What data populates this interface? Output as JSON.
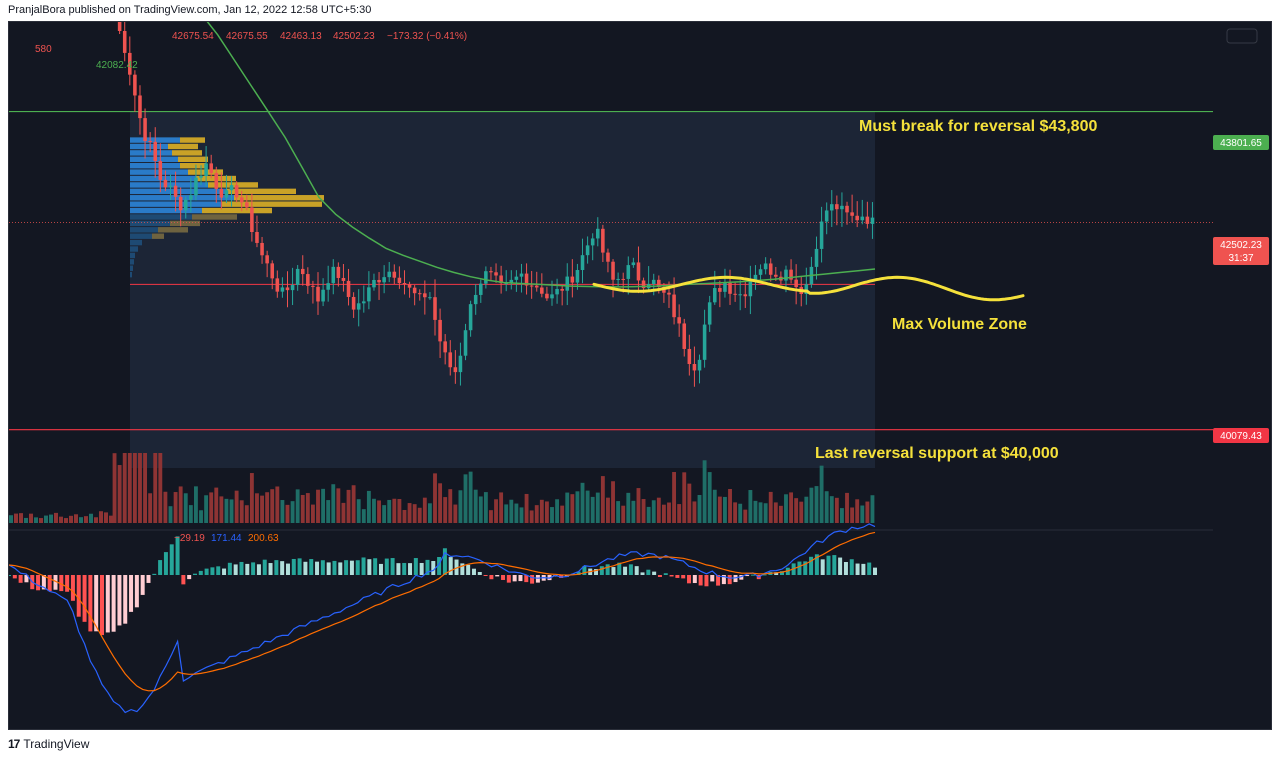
{
  "header": {
    "text": "PranjalBora published on TradingView.com, Jan 12, 2022 12:58 UTC+5:30"
  },
  "footer": {
    "logo": "17",
    "brand": "TradingView"
  },
  "ohlc": {
    "open": "42675.54",
    "high": "42675.55",
    "low": "42463.13",
    "close": "42502.23",
    "change": "−173.32 (−0.41%)"
  },
  "left_labels": {
    "top": "580",
    "ma": "42082.42"
  },
  "macd_values": {
    "hist": "−29.19",
    "macd": "171.44",
    "signal": "200.63"
  },
  "price_labels": {
    "resistance": "43801.65",
    "current": "42502.23",
    "countdown": "31:37",
    "support": "40079.43"
  },
  "annotations": {
    "resistance": "Must break for reversal $43,800",
    "max_volume": "Max Volume Zone",
    "support": "Last reversal support at $40,000"
  },
  "colors": {
    "background": "#131722",
    "up": "#26a69a",
    "down": "#ef5350",
    "resistance_line": "#4caf50",
    "support_line": "#f23645",
    "ma_line": "#4caf50",
    "annotation": "#f5e13b",
    "profile_blue": "#2a7bc8",
    "profile_gold": "#c9a227",
    "macd_line": "#2962ff",
    "signal_line": "#ff6d00"
  },
  "chart_data": {
    "type": "candlestick",
    "y_range": [
      39350,
      44850
    ],
    "levels": {
      "resistance": 43801.65,
      "current": 42502.23,
      "support": 40079.43,
      "max_volume": 41780
    },
    "close_path": [
      44900,
      44600,
      44100,
      43600,
      43350,
      43000,
      42900,
      42700,
      42800,
      43050,
      43200,
      42950,
      42800,
      42900,
      42700,
      42400,
      42100,
      41900,
      41650,
      41750,
      42000,
      41800,
      41600,
      41850,
      41950,
      41700,
      41500,
      41600,
      41800,
      41900,
      41950,
      41850,
      41700,
      41600,
      41700,
      41200,
      40850,
      40750,
      41300,
      41700,
      41900,
      41850,
      41700,
      41800,
      41900,
      41800,
      41750,
      41600,
      41700,
      41800,
      41950,
      42200,
      42450,
      42100,
      41800,
      41900,
      42000,
      41800,
      41850,
      41700,
      41600,
      41300,
      40950,
      40800,
      41400,
      41700,
      41800,
      41700,
      41650,
      41900,
      42000,
      41950,
      41900,
      41950,
      41700,
      41800,
      42300,
      42650,
      42700,
      42600,
      42550,
      42600,
      42500
    ],
    "ma": [
      45200,
      44950,
      44700,
      44400,
      44100,
      43800,
      43500,
      43150,
      42800,
      42600,
      42450,
      42320,
      42200,
      42120,
      42050,
      41980,
      41920,
      41870,
      41830,
      41800,
      41790,
      41780,
      41770,
      41760,
      41755,
      41750,
      41750,
      41755,
      41760,
      41770,
      41780,
      41790,
      41800,
      41810,
      41825,
      41840,
      41860,
      41880,
      41900,
      41920,
      41940,
      41960
    ],
    "volume_profile": {
      "rows": 26,
      "top_price": 43800,
      "row_height": 75
    },
    "macd": {
      "hist": -29.19,
      "macd": 171.44,
      "signal": 200.63
    }
  }
}
